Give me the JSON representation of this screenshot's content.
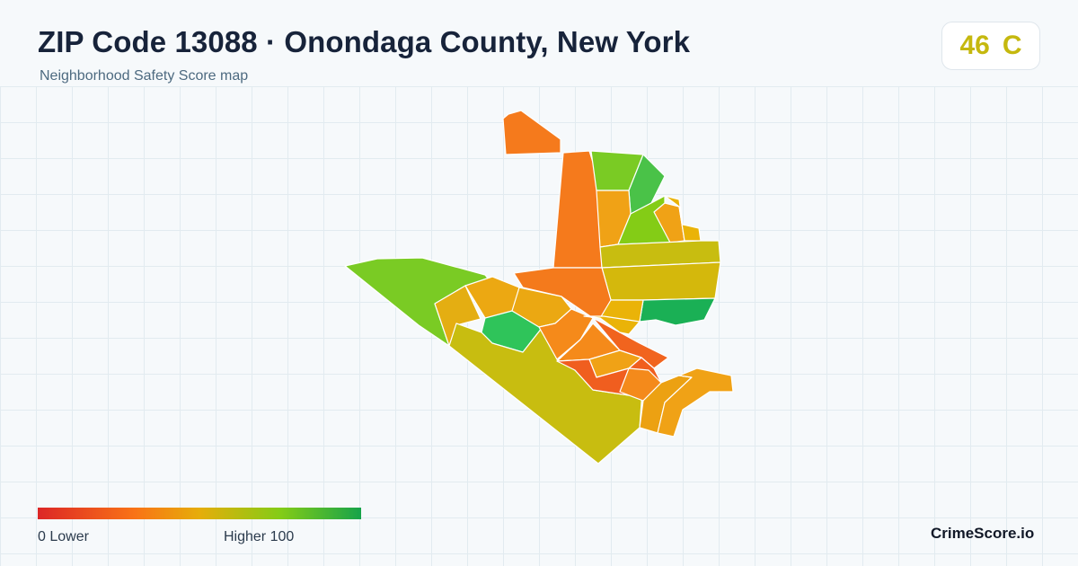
{
  "header": {
    "title": "ZIP Code 13088 · Onondaga County, New York",
    "subtitle": "Neighborhood Safety Score map"
  },
  "score": {
    "value": "46",
    "grade": "C",
    "color": "#c5b80e"
  },
  "legend": {
    "low_label": "0  Lower",
    "high_label": "Higher  100",
    "scale_colors": [
      "#dc2626",
      "#f97316",
      "#e6ad0a",
      "#84cc16",
      "#16a34a"
    ]
  },
  "brand": "CrimeScore.io",
  "map": {
    "regions": [
      {
        "id": "r1",
        "color": "#f57a1c"
      },
      {
        "id": "r2",
        "color": "#f57a1c"
      },
      {
        "id": "r3",
        "color": "#7acb24"
      },
      {
        "id": "r4",
        "color": "#4ac248"
      },
      {
        "id": "r5",
        "color": "#f0a216"
      },
      {
        "id": "r6",
        "color": "#84cc16"
      },
      {
        "id": "r7",
        "color": "#f0a216"
      },
      {
        "id": "r8",
        "color": "#eab308"
      },
      {
        "id": "r9",
        "color": "#c8bd10"
      },
      {
        "id": "r10",
        "color": "#d4b80c"
      },
      {
        "id": "r11",
        "color": "#1ab055"
      },
      {
        "id": "r12",
        "color": "#f47a1c"
      },
      {
        "id": "r13",
        "color": "#eab308"
      },
      {
        "id": "r14",
        "color": "#7acb24"
      },
      {
        "id": "r15",
        "color": "#e4ae12"
      },
      {
        "id": "r16",
        "color": "#eca812"
      },
      {
        "id": "r17",
        "color": "#2fc45a"
      },
      {
        "id": "r18",
        "color": "#eba812"
      },
      {
        "id": "r19",
        "color": "#c8bd10"
      },
      {
        "id": "r20",
        "color": "#f58a1a"
      },
      {
        "id": "r21",
        "color": "#f1641e"
      },
      {
        "id": "r22",
        "color": "#f58a1a"
      },
      {
        "id": "r23",
        "color": "#f0a216"
      },
      {
        "id": "r24",
        "color": "#f05e1f"
      },
      {
        "id": "r25",
        "color": "#f48a1b"
      },
      {
        "id": "r26",
        "color": "#eca112"
      },
      {
        "id": "r27",
        "color": "#f0a216"
      },
      {
        "id": "r28",
        "color": "#eab308"
      }
    ]
  }
}
